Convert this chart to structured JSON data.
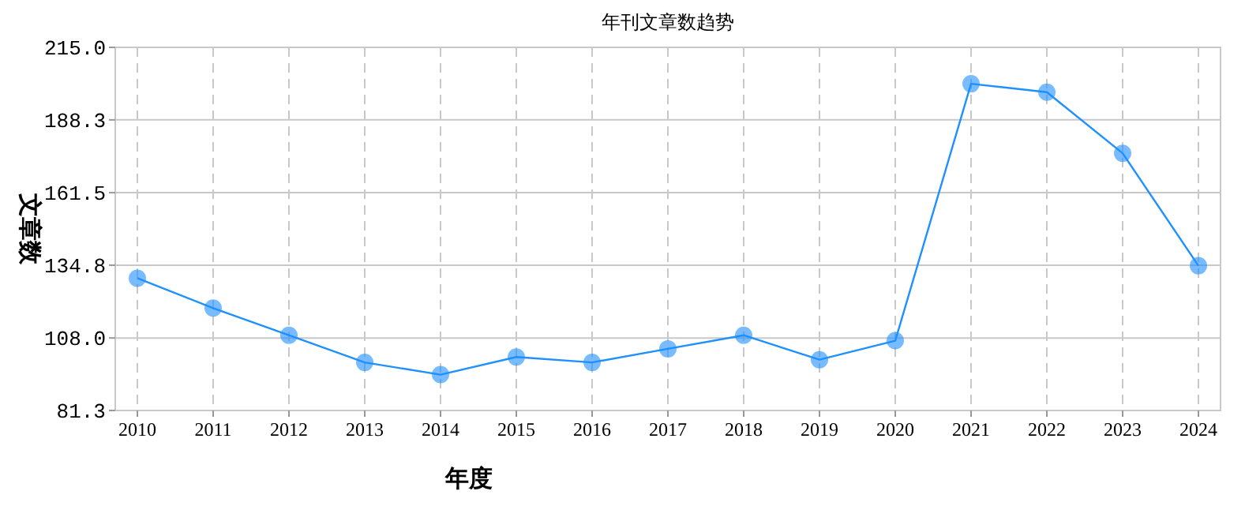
{
  "chart_data": {
    "type": "line",
    "title": "年刊文章数趋势",
    "xlabel": "年度",
    "ylabel": "文章数",
    "categories": [
      "2010",
      "2011",
      "2012",
      "2013",
      "2014",
      "2015",
      "2016",
      "2017",
      "2018",
      "2019",
      "2020",
      "2021",
      "2022",
      "2023",
      "2024"
    ],
    "series": [
      {
        "color": "#1e90ff",
        "values": [
          130,
          119,
          109,
          99,
          94.5,
          101,
          99,
          104,
          109,
          100,
          107,
          201.6,
          198.5,
          176,
          134.6
        ]
      }
    ],
    "ylim": [
      81.3,
      215.0
    ],
    "yticks": [
      {
        "value": 81.3,
        "label": "81.3"
      },
      {
        "value": 108.0,
        "label": "108.0"
      },
      {
        "value": 134.8,
        "label": "134.8"
      },
      {
        "value": 161.5,
        "label": "161.5"
      },
      {
        "value": 188.3,
        "label": "188.3"
      },
      {
        "value": 215.0,
        "label": "215.0"
      }
    ],
    "grid": true,
    "marker": "circle",
    "line_style": "solid"
  }
}
